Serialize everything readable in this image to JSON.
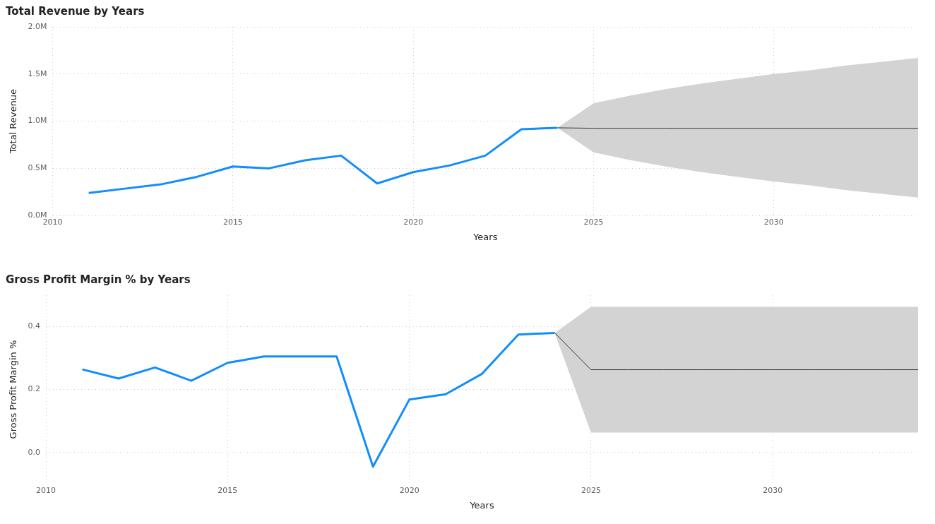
{
  "chart_data": [
    {
      "type": "line",
      "title": "Total Revenue by Years",
      "xlabel": "Years",
      "ylabel": "Total Revenue",
      "xlim": [
        2010,
        2034
      ],
      "xticks": [
        2010,
        2015,
        2020,
        2025,
        2030
      ],
      "ylim": [
        0,
        2000000
      ],
      "yticks": [
        {
          "value": 0,
          "label": "0.0M"
        },
        {
          "value": 500000,
          "label": "0.5M"
        },
        {
          "value": 1000000,
          "label": "1.0M"
        },
        {
          "value": 1500000,
          "label": "1.5M"
        },
        {
          "value": 2000000,
          "label": "2.0M"
        }
      ],
      "grid": true,
      "legend": false,
      "series": [
        {
          "color": "#118dff",
          "x": [
            2011,
            2012,
            2013,
            2014,
            2015,
            2016,
            2017,
            2018,
            2019,
            2020,
            2021,
            2022,
            2023,
            2024
          ],
          "values": [
            240000,
            285000,
            330000,
            410000,
            520000,
            500000,
            585000,
            635000,
            340000,
            460000,
            530000,
            635000,
            915000,
            930000
          ]
        },
        {
          "color": "#333333",
          "x": [
            2024,
            2025,
            2026,
            2027,
            2028,
            2029,
            2030,
            2031,
            2032,
            2033,
            2034
          ],
          "values": [
            930000,
            925000,
            925000,
            925000,
            925000,
            925000,
            925000,
            925000,
            925000,
            925000,
            925000
          ],
          "lower": [
            930000,
            670000,
            590000,
            520000,
            460000,
            410000,
            360000,
            320000,
            270000,
            230000,
            190000
          ],
          "upper": [
            930000,
            1190000,
            1270000,
            1340000,
            1400000,
            1450000,
            1500000,
            1540000,
            1590000,
            1630000,
            1670000
          ]
        }
      ]
    },
    {
      "type": "line",
      "title": "Gross Profit Margin % by Years",
      "xlabel": "Years",
      "ylabel": "Gross Profit Margin %",
      "xlim": [
        2010,
        2034
      ],
      "xticks": [
        2010,
        2015,
        2020,
        2025,
        2030
      ],
      "ylim": [
        -0.1,
        0.5
      ],
      "yticks": [
        {
          "value": 0,
          "label": "0.0"
        },
        0.2,
        0.4
      ],
      "grid": true,
      "legend": false,
      "series": [
        {
          "color": "#118dff",
          "x": [
            2011,
            2012,
            2013,
            2014,
            2015,
            2016,
            2017,
            2018,
            2019,
            2020,
            2021,
            2022,
            2023,
            2024
          ],
          "values": [
            0.264,
            0.235,
            0.27,
            0.228,
            0.285,
            0.305,
            0.305,
            0.305,
            -0.045,
            0.168,
            0.185,
            0.25,
            0.375,
            0.38
          ]
        },
        {
          "color": "#333333",
          "x": [
            2024,
            2025,
            2026,
            2027,
            2028,
            2029,
            2030,
            2031,
            2032,
            2033,
            2034
          ],
          "values": [
            0.38,
            0.263,
            0.263,
            0.263,
            0.263,
            0.263,
            0.263,
            0.263,
            0.263,
            0.263,
            0.263
          ],
          "lower": [
            0.38,
            0.063,
            0.063,
            0.063,
            0.063,
            0.063,
            0.063,
            0.063,
            0.063,
            0.063,
            0.063
          ],
          "upper": [
            0.38,
            0.463,
            0.463,
            0.463,
            0.463,
            0.463,
            0.463,
            0.463,
            0.463,
            0.463,
            0.463
          ]
        }
      ]
    }
  ]
}
